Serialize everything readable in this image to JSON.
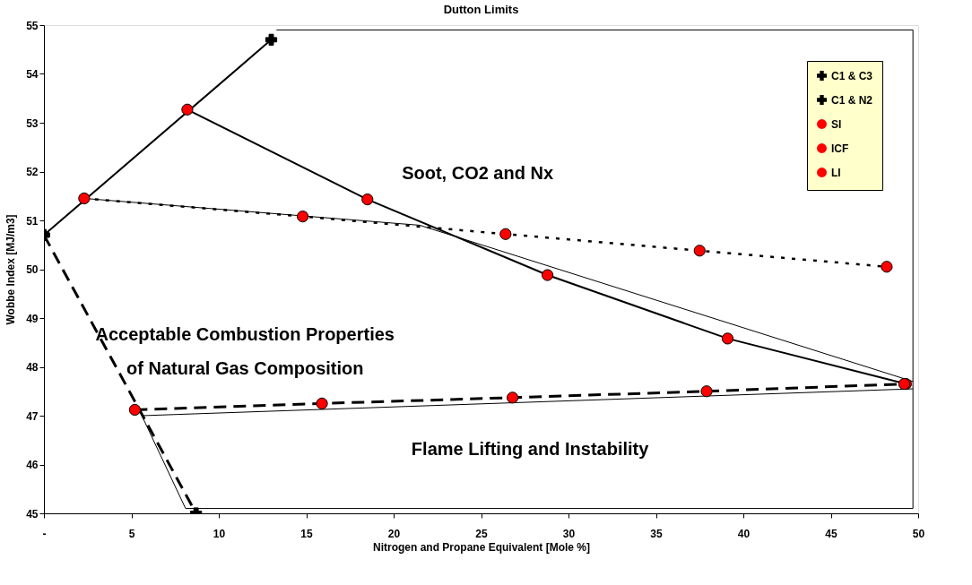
{
  "chart_data": {
    "type": "line",
    "title": "Dutton Limits",
    "xlabel": "Nitrogen and Propane Equivalent [Mole %]",
    "ylabel": "Wobbe Index [MJ/m3]",
    "xlim": [
      0,
      50
    ],
    "xticks": [
      {
        "value": 0,
        "label": "-"
      },
      5,
      10,
      15,
      20,
      25,
      30,
      35,
      40,
      45,
      50
    ],
    "ylim": [
      45,
      55
    ],
    "yticks": [
      45,
      46,
      47,
      48,
      49,
      50,
      51,
      52,
      53,
      54,
      55
    ],
    "grid": false,
    "legend": "top right",
    "series": [
      {
        "name": "C1 & C3",
        "color": "#000000",
        "marker": "cross",
        "line_style": "solid",
        "x": [
          0,
          13
        ],
        "values": [
          50.7,
          54.7
        ]
      },
      {
        "name": "C1 & N2",
        "color": "#000000",
        "marker": "cross",
        "line_style": "dashed",
        "x": [
          0,
          8.7
        ],
        "values": [
          50.7,
          45
        ]
      },
      {
        "name": "SI",
        "color": "#ff0000",
        "marker": "circle",
        "line_style": "solid",
        "x": [
          8.2,
          18.5,
          28.8,
          39.1,
          49.3
        ],
        "values": [
          53.27,
          51.43,
          49.88,
          48.58,
          47.65
        ]
      },
      {
        "name": "ICF",
        "color": "#ff0000",
        "marker": "circle",
        "line_style": "dotted",
        "x": [
          2.3,
          14.8,
          26.4,
          37.5,
          48.2
        ],
        "values": [
          51.45,
          51.08,
          50.72,
          50.38,
          50.05
        ]
      },
      {
        "name": "LI",
        "color": "#ff0000",
        "marker": "circle",
        "line_style": "dashed",
        "x": [
          5.2,
          15.9,
          26.8,
          37.9,
          49.2
        ],
        "values": [
          47.12,
          47.25,
          47.37,
          47.5,
          47.65
        ]
      },
      {
        "color": "#000000",
        "marker": "none",
        "line_style": "solid",
        "x": [
          13.3,
          49.7,
          49.7,
          8.1,
          5.6,
          49.7
        ],
        "values": [
          54.9,
          54.9,
          45.1,
          45.1,
          47.0,
          47.55
        ]
      },
      {
        "color": "#000000",
        "marker": "none",
        "line_style": "solid",
        "x": [
          2.3,
          21.5,
          49.7
        ],
        "values": [
          51.45,
          50.9,
          47.7
        ]
      }
    ],
    "annotations": [
      "Soot, CO2 and Nx",
      "Acceptable Combustion Properties",
      "of Natural Gas Composition",
      "Flame Lifting and Instability"
    ]
  }
}
